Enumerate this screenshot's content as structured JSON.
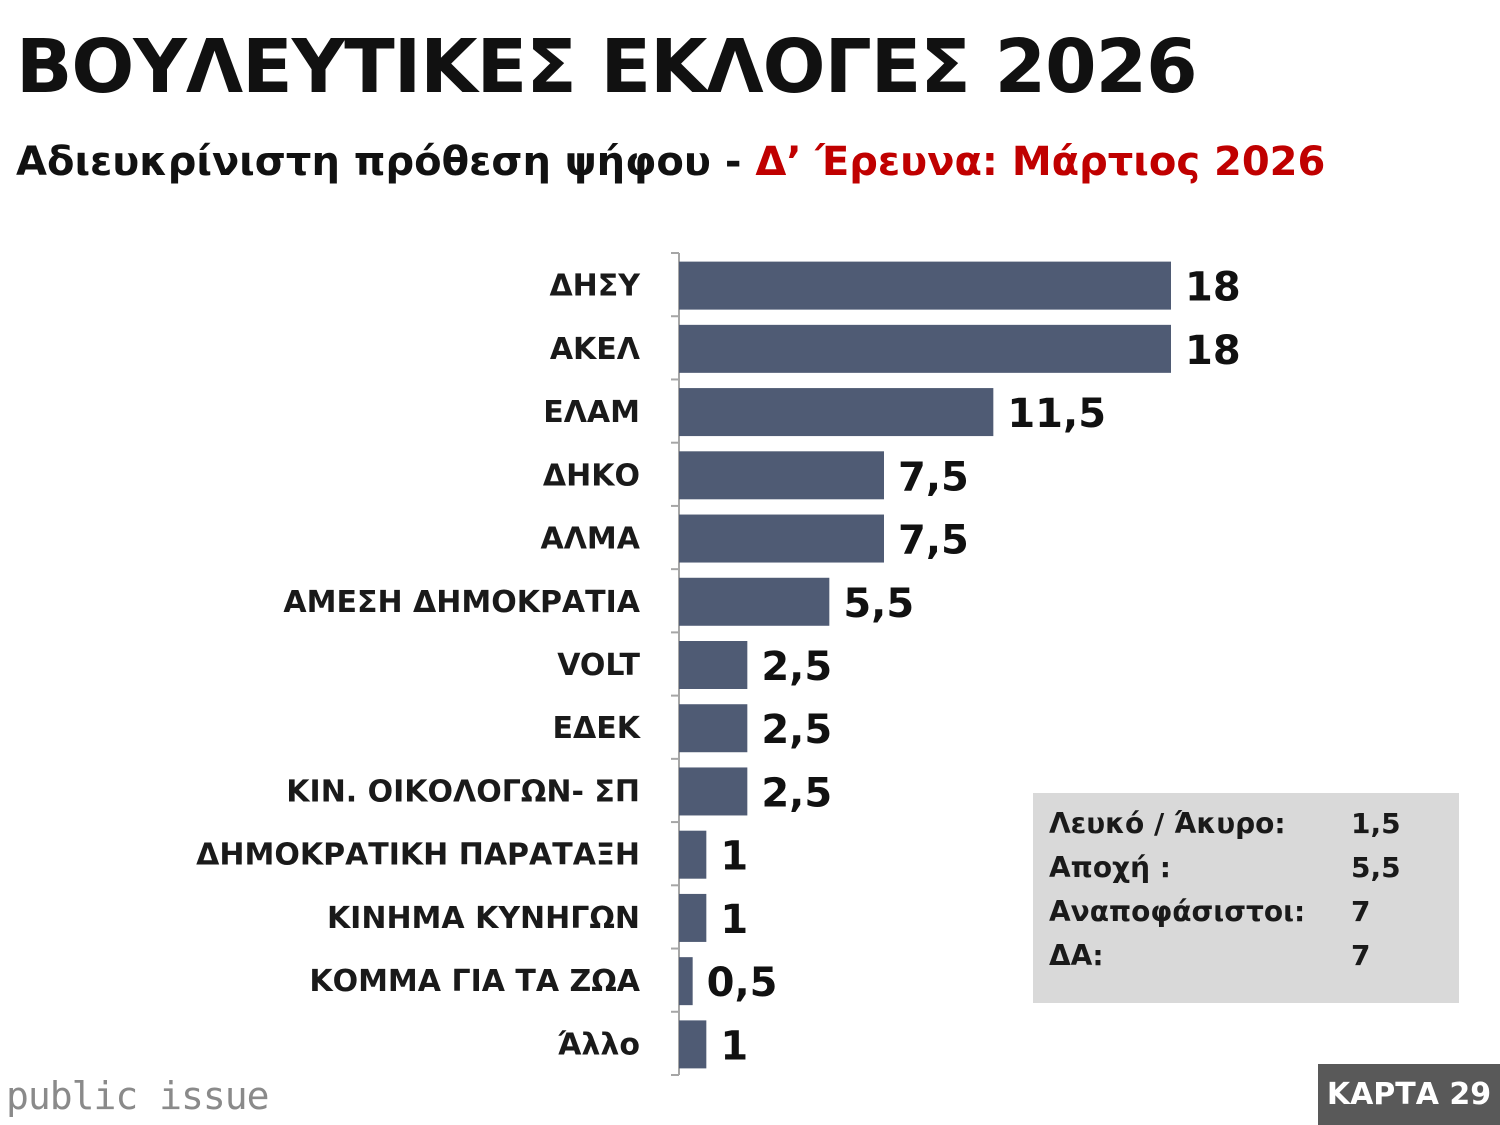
{
  "header": {
    "title": "ΒΟΥΛΕΥΤΙΚΕΣ ΕΚΛΟΓΕΣ 2026",
    "subtitle_prefix": "Αδιευκρίνιστη πρόθεση ψήφου - ",
    "subtitle_accent": "Δ’ Έρευνα:  Μάρτιος 2026",
    "accent_color": "#c00000"
  },
  "chart_data": {
    "type": "bar",
    "orientation": "horizontal",
    "categories": [
      "ΔΗΣΥ",
      "ΑΚΕΛ",
      "ΕΛΑΜ",
      "ΔΗΚΟ",
      "ΑΛΜΑ",
      "ΑΜΕΣΗ ΔΗΜΟΚΡΑΤΙΑ",
      "VOLT",
      "ΕΔΕΚ",
      "ΚΙΝ. ΟΙΚΟΛΟΓΩΝ- ΣΠ",
      "ΔΗΜΟΚΡΑΤΙΚΗ ΠΑΡΑΤΑΞΗ",
      "ΚΙΝΗΜΑ ΚΥΝΗΓΩΝ",
      "ΚΟΜΜΑ ΓΙΑ ΤΑ ΖΩΑ",
      "Άλλο"
    ],
    "values": [
      18,
      18,
      11.5,
      7.5,
      7.5,
      5.5,
      2.5,
      2.5,
      2.5,
      1,
      1,
      0.5,
      1
    ],
    "value_labels": [
      "18",
      "18",
      "11,5",
      "7,5",
      "7,5",
      "5,5",
      "2,5",
      "2,5",
      "2,5",
      "1",
      "1",
      "0,5",
      "1"
    ],
    "xlim": [
      0,
      18
    ],
    "grid": false,
    "legend": "none",
    "bar_color": "#4f5b74"
  },
  "info_box": {
    "rows": [
      {
        "label": "Λευκό / Άκυρο:",
        "value": "1,5"
      },
      {
        "label": "Αποχή :",
        "value": "5,5"
      },
      {
        "label": "Αναποφάσιστοι:",
        "value": "7"
      },
      {
        "label": "ΔΑ:",
        "value": "7"
      }
    ]
  },
  "footer": {
    "logo": "public issue",
    "card_label": "ΚΑΡΤΑ 29"
  }
}
